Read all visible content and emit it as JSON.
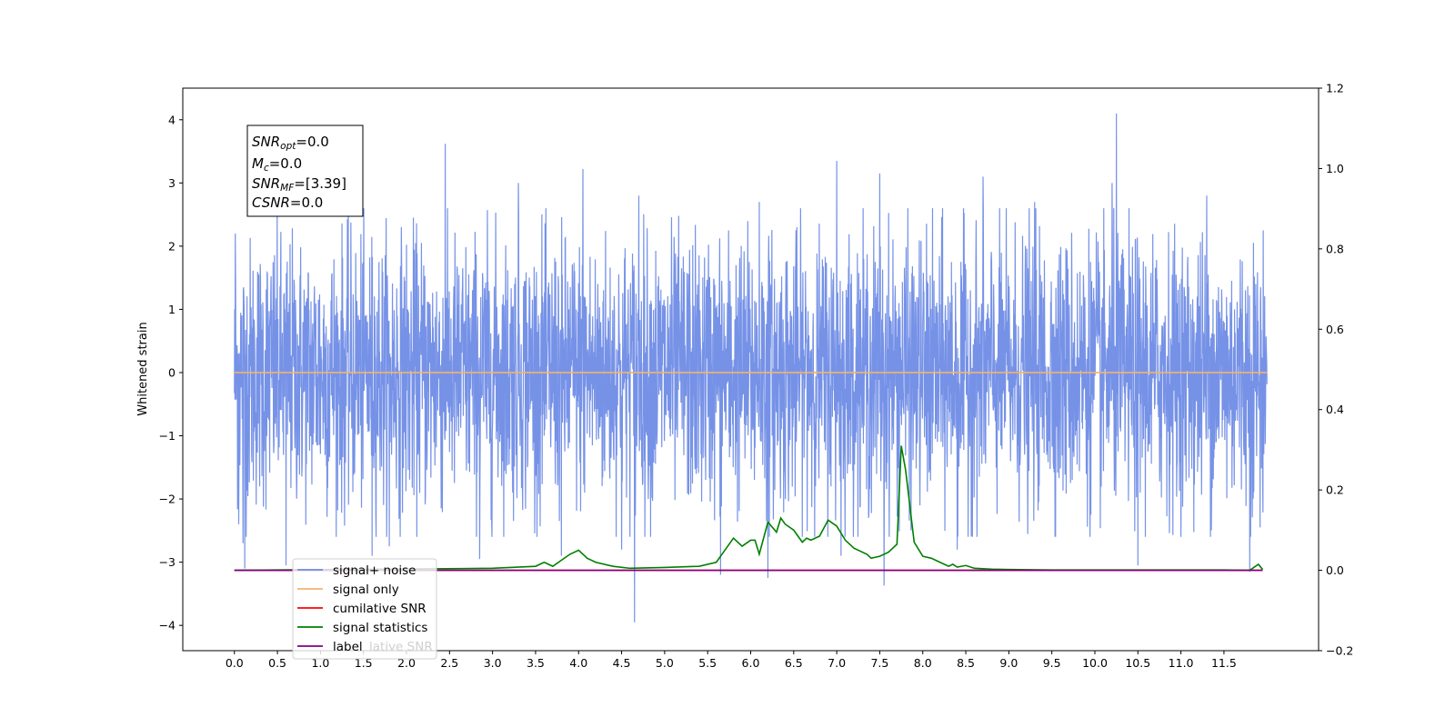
{
  "chart_data": {
    "type": "line",
    "xlabel": "",
    "ylabel": "Whitened strain",
    "xlim": [
      -0.6,
      12.6
    ],
    "ylim": [
      -4.4,
      4.5
    ],
    "ylim_right": [
      -0.2,
      1.2
    ],
    "x_ticks": [
      0.0,
      0.5,
      1.0,
      1.5,
      2.0,
      2.5,
      3.0,
      3.5,
      4.0,
      4.5,
      5.0,
      5.5,
      6.0,
      6.5,
      7.0,
      7.5,
      8.0,
      8.5,
      9.0,
      9.5,
      10.0,
      10.5,
      11.0,
      11.5
    ],
    "x_tick_labels": [
      "0.0",
      "0.5",
      "1.0",
      "1.5",
      "2.0",
      "2.5",
      "3.0",
      "3.5",
      "4.0",
      "4.5",
      "5.0",
      "5.5",
      "6.0",
      "6.5",
      "7.0",
      "7.5",
      "8.0",
      "8.5",
      "9.0",
      "9.5",
      "10.0",
      "10.5",
      "11.0",
      "11.5"
    ],
    "y_ticks": [
      -4,
      -3,
      -2,
      -1,
      0,
      1,
      2,
      3,
      4
    ],
    "y_tick_labels": [
      "−4",
      "−3",
      "−2",
      "−1",
      "0",
      "1",
      "2",
      "3",
      "4"
    ],
    "y_ticks_right": [
      -0.2,
      0.0,
      0.2,
      0.4,
      0.6,
      0.8,
      1.0,
      1.2
    ],
    "y_tick_labels_right": [
      "−0.2",
      "0.0",
      "0.2",
      "0.4",
      "0.6",
      "0.8",
      "1.0",
      "1.2"
    ],
    "grid": false,
    "legend_position": "bottom-left",
    "series": [
      {
        "name": "signal+ noise",
        "axis": "left",
        "color": "#6f8ce6",
        "x_range": [
          0.0,
          12.0
        ],
        "amplitude_std": 1.05,
        "spikes": [
          {
            "x": 0.01,
            "y": 2.2
          },
          {
            "x": 0.05,
            "y": -2.4
          },
          {
            "x": 0.1,
            "y": -2.7
          },
          {
            "x": 0.12,
            "y": -3.1
          },
          {
            "x": 0.6,
            "y": -3.05
          },
          {
            "x": 1.6,
            "y": -2.9
          },
          {
            "x": 1.8,
            "y": -2.75
          },
          {
            "x": 2.45,
            "y": 3.62
          },
          {
            "x": 2.85,
            "y": -2.95
          },
          {
            "x": 3.3,
            "y": 3.0
          },
          {
            "x": 3.8,
            "y": -2.9
          },
          {
            "x": 4.05,
            "y": 3.22
          },
          {
            "x": 4.5,
            "y": -2.8
          },
          {
            "x": 4.65,
            "y": -3.95
          },
          {
            "x": 4.7,
            "y": 2.8
          },
          {
            "x": 5.65,
            "y": -3.2
          },
          {
            "x": 6.2,
            "y": -3.25
          },
          {
            "x": 6.1,
            "y": 2.7
          },
          {
            "x": 7.0,
            "y": 3.35
          },
          {
            "x": 7.05,
            "y": 3.33
          },
          {
            "x": 7.5,
            "y": 3.15
          },
          {
            "x": 7.55,
            "y": -3.37
          },
          {
            "x": 7.05,
            "y": -2.9
          },
          {
            "x": 8.7,
            "y": 3.1
          },
          {
            "x": 8.4,
            "y": -2.8
          },
          {
            "x": 9.3,
            "y": 2.7
          },
          {
            "x": 10.2,
            "y": 3.0
          },
          {
            "x": 10.25,
            "y": 4.1
          },
          {
            "x": 10.5,
            "y": -3.05
          },
          {
            "x": 11.3,
            "y": 2.8
          },
          {
            "x": 11.8,
            "y": -3.15
          },
          {
            "x": 11.92,
            "y": -2.45
          }
        ]
      },
      {
        "name": "signal only",
        "axis": "left",
        "color": "#f5b26b",
        "x": [
          0.0,
          12.0
        ],
        "y": [
          0.0,
          0.0
        ]
      },
      {
        "name": "cumilative SNR",
        "axis": "right",
        "color": "#ff0000",
        "x": [
          0.0,
          11.95
        ],
        "y": [
          0.0,
          0.0
        ]
      },
      {
        "name": "signal statistics",
        "axis": "right",
        "color": "#008000",
        "x": [
          0.0,
          3.0,
          3.5,
          3.6,
          3.7,
          3.8,
          3.9,
          4.0,
          4.1,
          4.2,
          4.4,
          4.6,
          5.0,
          5.4,
          5.6,
          5.7,
          5.8,
          5.9,
          6.0,
          6.05,
          6.1,
          6.2,
          6.3,
          6.35,
          6.4,
          6.5,
          6.6,
          6.65,
          6.7,
          6.8,
          6.9,
          7.0,
          7.1,
          7.2,
          7.35,
          7.4,
          7.5,
          7.6,
          7.7,
          7.75,
          7.8,
          7.9,
          8.0,
          8.1,
          8.2,
          8.3,
          8.35,
          8.4,
          8.5,
          8.6,
          8.8,
          9.0,
          9.5,
          10.0,
          10.5,
          11.0,
          11.5,
          11.8,
          11.9,
          11.95
        ],
        "y": [
          0.0,
          0.005,
          0.01,
          0.02,
          0.01,
          0.025,
          0.04,
          0.05,
          0.03,
          0.02,
          0.01,
          0.005,
          0.007,
          0.01,
          0.02,
          0.05,
          0.08,
          0.06,
          0.075,
          0.075,
          0.04,
          0.12,
          0.095,
          0.13,
          0.115,
          0.1,
          0.07,
          0.08,
          0.075,
          0.085,
          0.125,
          0.11,
          0.075,
          0.055,
          0.04,
          0.03,
          0.035,
          0.045,
          0.065,
          0.31,
          0.25,
          0.07,
          0.035,
          0.03,
          0.02,
          0.01,
          0.015,
          0.008,
          0.012,
          0.005,
          0.003,
          0.002,
          0.001,
          0.001,
          0.001,
          0.001,
          0.001,
          0.0,
          0.015,
          0.002
        ]
      },
      {
        "name": "label",
        "axis": "right",
        "color": "#800080",
        "x": [
          0.0,
          11.95
        ],
        "y": [
          0.0,
          0.0
        ]
      }
    ],
    "legend_overlap_text": "lative SNR",
    "annotation": {
      "lines": [
        {
          "base": "SNR",
          "sub": "opt",
          "rest": "=0.0"
        },
        {
          "base": "M",
          "sub": "c",
          "rest": "=0.0"
        },
        {
          "base": "SNR",
          "sub": "MF",
          "rest": "=[3.39]"
        },
        {
          "base": "CSNR",
          "sub": "",
          "rest": "=0.0"
        }
      ]
    }
  }
}
